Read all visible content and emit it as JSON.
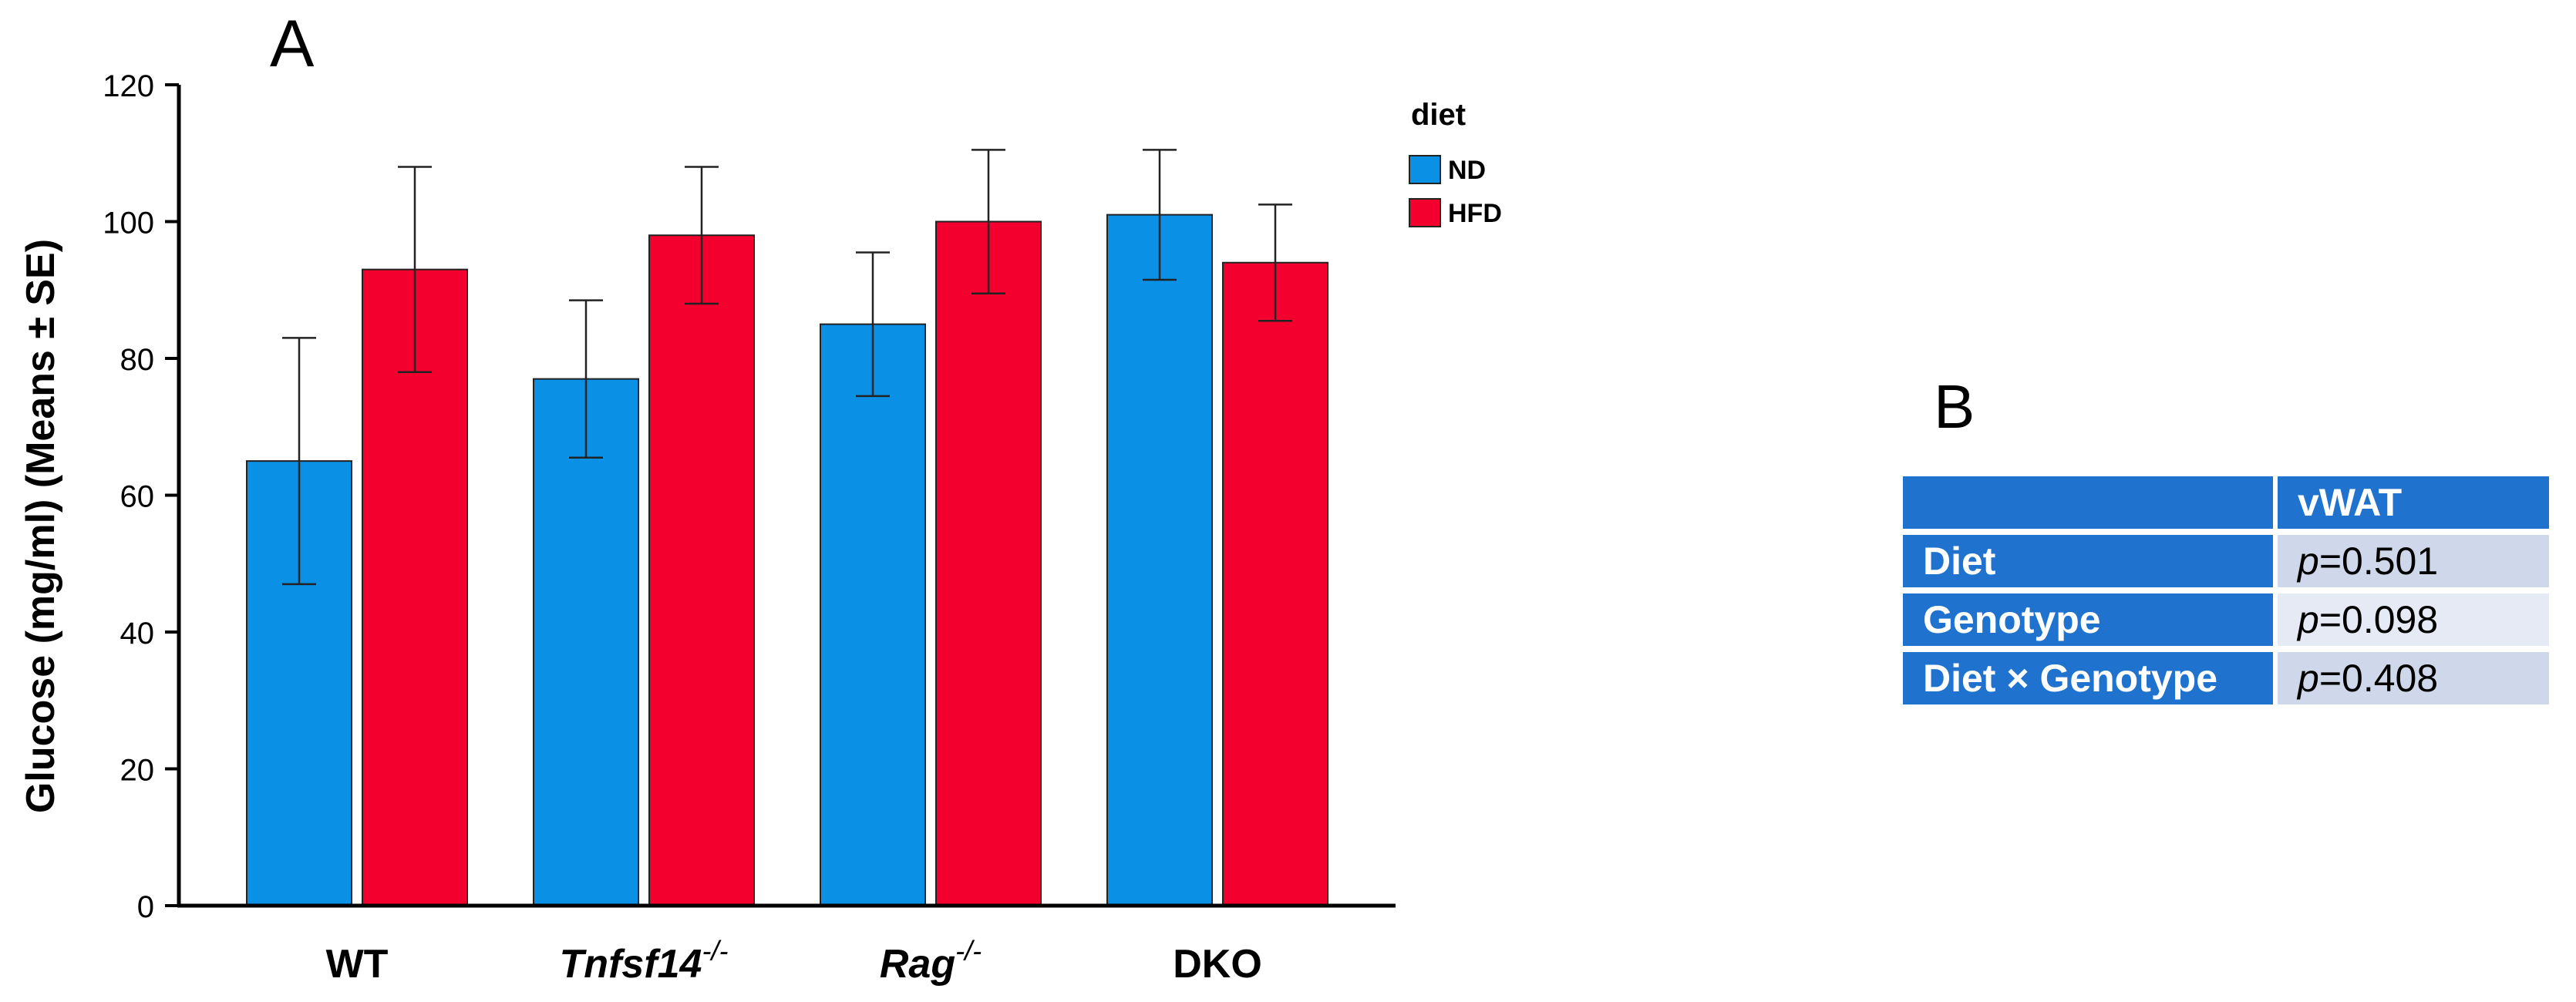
{
  "panel_a_label": "A",
  "panel_b_label": "B",
  "chart_data": {
    "type": "bar",
    "categories": [
      "WT",
      "Tnfsf14",
      "Rag",
      "DKO"
    ],
    "category_superscripts": [
      "",
      "-/-",
      "-/-",
      ""
    ],
    "category_italic": [
      false,
      true,
      true,
      false
    ],
    "series": [
      {
        "name": "ND",
        "color": "#0a91e6",
        "values": [
          65,
          77,
          85,
          101
        ],
        "se": [
          18,
          11.5,
          10.5,
          9.5
        ]
      },
      {
        "name": "HFD",
        "color": "#f4002e",
        "values": [
          93,
          98,
          100,
          94
        ],
        "se": [
          15,
          10,
          10.5,
          8.5
        ]
      }
    ],
    "title": "",
    "legend_title": "diet",
    "legend_position": "top-right",
    "xlabel": "",
    "ylabel": "Glucose (mg/ml) (Means ± SE)",
    "ylim": [
      0,
      120
    ],
    "yticks": [
      0,
      20,
      40,
      60,
      80,
      100,
      120
    ]
  },
  "table": {
    "header": [
      "",
      "vWAT"
    ],
    "rows": [
      {
        "label": "Diet",
        "p_prefix": "p",
        "p_value": "=0.501"
      },
      {
        "label": "Genotype",
        "p_prefix": "p",
        "p_value": "=0.098"
      },
      {
        "label": "Diet × Genotype",
        "p_prefix": "p",
        "p_value": "=0.408"
      }
    ]
  }
}
